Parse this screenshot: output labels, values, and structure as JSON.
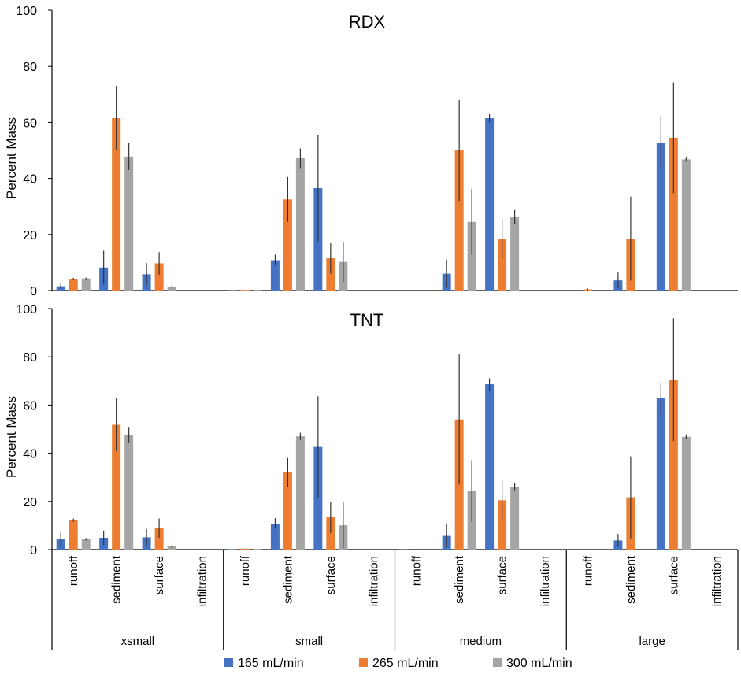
{
  "chart_data": {
    "type": "bar",
    "ylabel": "Percent Mass",
    "ylim": [
      0,
      100
    ],
    "yticks": [
      0,
      20,
      40,
      60,
      80,
      100
    ],
    "groups": [
      "xsmall",
      "small",
      "medium",
      "large"
    ],
    "categories": [
      "runoff",
      "sediment",
      "surface",
      "infiltration"
    ],
    "series_names": [
      "165 mL/min",
      "265 mL/min",
      "300 mL/min"
    ],
    "colors": [
      "#4472C4",
      "#ED7D31",
      "#A5A5A5"
    ],
    "panels": [
      {
        "title": "RDX",
        "values": [
          [
            [
              1.5,
              4.2,
              4.3
            ],
            [
              8.2,
              61.5,
              47.8
            ],
            [
              5.8,
              9.7,
              1.3
            ],
            [
              0,
              0,
              0
            ]
          ],
          [
            [
              0.1,
              0.2,
              0.1
            ],
            [
              10.8,
              32.5,
              47.2
            ],
            [
              36.5,
              11.5,
              10.2
            ],
            [
              0,
              0,
              0
            ]
          ],
          [
            [
              0,
              0,
              0
            ],
            [
              6.0,
              50.0,
              24.5
            ],
            [
              61.5,
              18.5,
              26.2
            ],
            [
              0,
              0,
              0
            ]
          ],
          [
            [
              0,
              0.4,
              0
            ],
            [
              3.6,
              18.5,
              0
            ],
            [
              52.6,
              54.5,
              46.8
            ],
            [
              0,
              0,
              0
            ]
          ]
        ],
        "errors": [
          [
            [
              1.0,
              0.3,
              0.3
            ],
            [
              6.0,
              11.5,
              4.8
            ],
            [
              4.0,
              4.0,
              0.3
            ],
            [
              0,
              0,
              0
            ]
          ],
          [
            [
              0,
              0,
              0
            ],
            [
              2.0,
              8.0,
              3.5
            ],
            [
              19.0,
              5.5,
              7.2
            ],
            [
              0,
              0,
              0
            ]
          ],
          [
            [
              0,
              0,
              0
            ],
            [
              5.0,
              18.0,
              11.8
            ],
            [
              1.5,
              7.2,
              2.5
            ],
            [
              0,
              0,
              0
            ]
          ],
          [
            [
              0,
              0.3,
              0
            ],
            [
              2.8,
              15.0,
              0
            ],
            [
              9.8,
              19.8,
              0.8
            ],
            [
              0,
              0,
              0
            ]
          ]
        ]
      },
      {
        "title": "TNT",
        "values": [
          [
            [
              4.3,
              12.2,
              4.3
            ],
            [
              4.9,
              51.8,
              47.7
            ],
            [
              5.1,
              8.9,
              1.3
            ],
            [
              0,
              0,
              0
            ]
          ],
          [
            [
              0.2,
              0.4,
              0.2
            ],
            [
              10.8,
              32.0,
              47.0
            ],
            [
              42.6,
              13.4,
              10.1
            ],
            [
              0,
              0,
              0
            ]
          ],
          [
            [
              0.1,
              0,
              0
            ],
            [
              5.7,
              54.0,
              24.3
            ],
            [
              68.6,
              20.5,
              26.1
            ],
            [
              0,
              0,
              0
            ]
          ],
          [
            [
              0,
              0,
              0
            ],
            [
              3.8,
              21.7,
              0
            ],
            [
              62.8,
              70.5,
              46.8
            ],
            [
              0,
              0,
              0
            ]
          ]
        ],
        "errors": [
          [
            [
              3.0,
              0.7,
              0.5
            ],
            [
              3.0,
              11.0,
              3.2
            ],
            [
              3.5,
              4.0,
              0.5
            ],
            [
              0,
              0,
              0
            ]
          ],
          [
            [
              0,
              0,
              0
            ],
            [
              2.2,
              6.0,
              1.5
            ],
            [
              21.0,
              6.5,
              9.5
            ],
            [
              0,
              0,
              0
            ]
          ],
          [
            [
              0,
              0,
              0
            ],
            [
              4.8,
              27.0,
              12.8
            ],
            [
              2.5,
              8.0,
              1.5
            ],
            [
              0,
              0,
              0
            ]
          ],
          [
            [
              0,
              0,
              0
            ],
            [
              2.7,
              17.0,
              0
            ],
            [
              6.5,
              25.5,
              1.0
            ],
            [
              0,
              0,
              0
            ]
          ]
        ]
      }
    ]
  }
}
